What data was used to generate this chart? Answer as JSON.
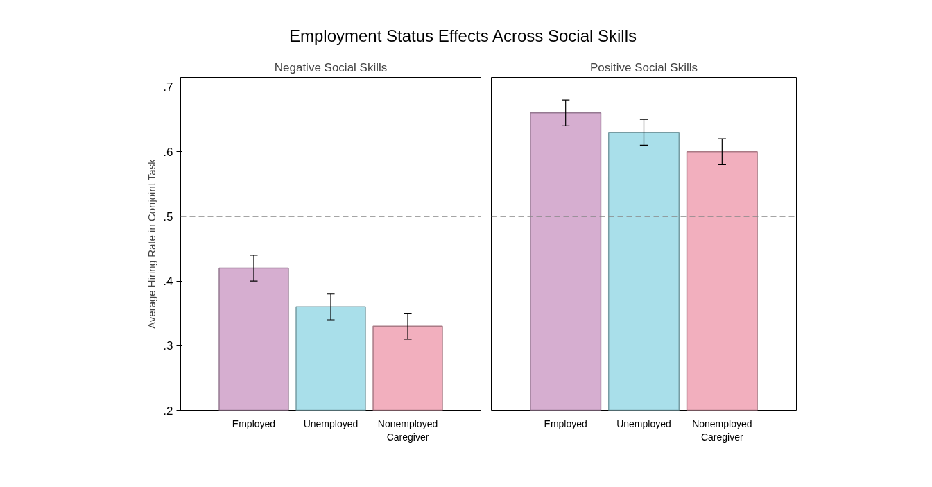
{
  "chart_data": [
    {
      "type": "bar",
      "title": "Negative Social Skills",
      "ylabel": "Average Hiring Rate in Conjoint Task",
      "annotations": [
        "Employment Status Effects Across Social Skills"
      ],
      "categories": [
        "Employed",
        "Unemployed",
        "Nonemployed\nCaregiver"
      ],
      "values": [
        0.42,
        0.36,
        0.33
      ],
      "colors": [
        "#d6aed0",
        "#a9dfea",
        "#f2afbe"
      ],
      "errors": [
        [
          0.4,
          0.44
        ],
        [
          0.34,
          0.38
        ],
        [
          0.31,
          0.35
        ]
      ],
      "ylim": [
        0.2,
        0.715
      ],
      "yticks": [
        {
          "value": 0.2,
          "label": ".2"
        },
        {
          "value": 0.3,
          "label": ".3"
        },
        {
          "value": 0.4,
          "label": ".4"
        },
        {
          "value": 0.5,
          "label": ".5"
        },
        {
          "value": 0.6,
          "label": ".6"
        },
        {
          "value": 0.7,
          "label": ".7"
        }
      ],
      "ref_lines": [
        {
          "axis": "y",
          "value": 0.5,
          "color": "#888888",
          "line_style": "dashed"
        }
      ],
      "grid": false
    },
    {
      "type": "bar",
      "title": "Positive Social Skills",
      "categories": [
        "Employed",
        "Unemployed",
        "Nonemployed\nCaregiver"
      ],
      "values": [
        0.66,
        0.63,
        0.6
      ],
      "colors": [
        "#d6aed0",
        "#a9dfea",
        "#f2afbe"
      ],
      "errors": [
        [
          0.64,
          0.68
        ],
        [
          0.61,
          0.65
        ],
        [
          0.58,
          0.62
        ]
      ],
      "ylim": [
        0.2,
        0.715
      ],
      "tick_labels": "x",
      "ref_lines": [
        {
          "axis": "y",
          "value": 0.5,
          "color": "#888888",
          "line_style": "dashed"
        }
      ],
      "grid": false
    }
  ]
}
